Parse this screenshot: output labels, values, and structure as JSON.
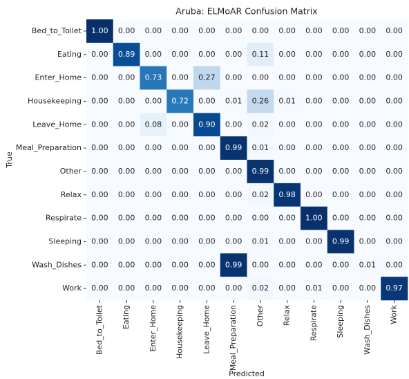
{
  "chart_data": {
    "type": "heatmap",
    "title": "Aruba: ELMoAR Confusion Matrix",
    "x_label": "Predicted",
    "y_label": "True",
    "categories": [
      "Bed_to_Toilet",
      "Eating",
      "Enter_Home",
      "Housekeeping",
      "Leave_Home",
      "Meal_Preparation",
      "Other",
      "Relax",
      "Respirate",
      "Sleeping",
      "Wash_Dishes",
      "Work"
    ],
    "values": [
      [
        1,
        0,
        0,
        0,
        0,
        0,
        0,
        0,
        0,
        0,
        0,
        0
      ],
      [
        0,
        0.89,
        0,
        0,
        0,
        0,
        0.11,
        0,
        0,
        0,
        0,
        0
      ],
      [
        0,
        0,
        0.73,
        0,
        0.27,
        0,
        0,
        0,
        0,
        0,
        0,
        0
      ],
      [
        0,
        0,
        0,
        0.72,
        0,
        0.01,
        0.26,
        0.01,
        0,
        0,
        0,
        0
      ],
      [
        0,
        0,
        0.08,
        0,
        0.9,
        0,
        0.02,
        0,
        0,
        0,
        0,
        0
      ],
      [
        0,
        0,
        0,
        0,
        0,
        0.99,
        0.01,
        0,
        0,
        0,
        0,
        0
      ],
      [
        0,
        0,
        0,
        0,
        0,
        0,
        0.99,
        0,
        0,
        0,
        0,
        0
      ],
      [
        0,
        0,
        0,
        0,
        0,
        0,
        0.02,
        0.98,
        0,
        0,
        0,
        0
      ],
      [
        0,
        0,
        0,
        0,
        0,
        0,
        0,
        0,
        1,
        0,
        0,
        0
      ],
      [
        0,
        0,
        0,
        0,
        0,
        0,
        0.01,
        0,
        0,
        0.99,
        0,
        0
      ],
      [
        0,
        0,
        0,
        0,
        0,
        0.99,
        0,
        0,
        0,
        0,
        0.01,
        0
      ],
      [
        0,
        0,
        0,
        0,
        0,
        0,
        0.02,
        0,
        0.01,
        0,
        0,
        0.97
      ]
    ],
    "value_labels": [
      [
        "1.00",
        "0.00",
        "0.00",
        "0.00",
        "0.00",
        "0.00",
        "0.00",
        "0.00",
        "0.00",
        "0.00",
        "0.00",
        "0.00"
      ],
      [
        "0.00",
        "0.89",
        "0.00",
        "0.00",
        "0.00",
        "0.00",
        "0.11",
        "0.00",
        "0.00",
        "0.00",
        "0.00",
        "0.00"
      ],
      [
        "0.00",
        "0.00",
        "0.73",
        "0.00",
        "0.27",
        "0.00",
        "0.00",
        "0.00",
        "0.00",
        "0.00",
        "0.00",
        "0.00"
      ],
      [
        "0.00",
        "0.00",
        "0.00",
        "0.72",
        "0.00",
        "0.01",
        "0.26",
        "0.01",
        "0.00",
        "0.00",
        "0.00",
        "0.00"
      ],
      [
        "0.00",
        "0.00",
        "0.08",
        "0.00",
        "0.90",
        "0.00",
        "0.02",
        "0.00",
        "0.00",
        "0.00",
        "0.00",
        "0.00"
      ],
      [
        "0.00",
        "0.00",
        "0.00",
        "0.00",
        "0.00",
        "0.99",
        "0.01",
        "0.00",
        "0.00",
        "0.00",
        "0.00",
        "0.00"
      ],
      [
        "0.00",
        "0.00",
        "0.00",
        "0.00",
        "0.00",
        "0.00",
        "0.99",
        "0.00",
        "0.00",
        "0.00",
        "0.00",
        "0.00"
      ],
      [
        "0.00",
        "0.00",
        "0.00",
        "0.00",
        "0.00",
        "0.00",
        "0.02",
        "0.98",
        "0.00",
        "0.00",
        "0.00",
        "0.00"
      ],
      [
        "0.00",
        "0.00",
        "0.00",
        "0.00",
        "0.00",
        "0.00",
        "0.00",
        "0.00",
        "1.00",
        "0.00",
        "0.00",
        "0.00"
      ],
      [
        "0.00",
        "0.00",
        "0.00",
        "0.00",
        "0.00",
        "0.00",
        "0.01",
        "0.00",
        "0.00",
        "0.99",
        "0.00",
        "0.00"
      ],
      [
        "0.00",
        "0.00",
        "0.00",
        "0.00",
        "0.00",
        "0.99",
        "0.00",
        "0.00",
        "0.00",
        "0.00",
        "0.01",
        "0.00"
      ],
      [
        "0.00",
        "0.00",
        "0.00",
        "0.00",
        "0.00",
        "0.00",
        "0.02",
        "0.00",
        "0.01",
        "0.00",
        "0.00",
        "0.97"
      ]
    ],
    "vlim": [
      0,
      1
    ],
    "colormap": [
      "#f7fbff",
      "#deebf7",
      "#c6dbef",
      "#9ecae1",
      "#6baed6",
      "#4292c6",
      "#2171b5",
      "#08519c",
      "#08306b"
    ]
  }
}
